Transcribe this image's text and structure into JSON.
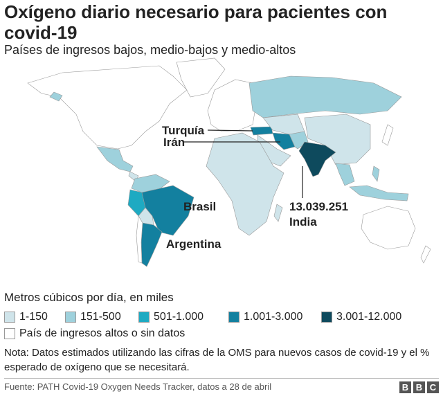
{
  "title": "Oxígeno diario necesario para pacientes con covid-19",
  "subtitle": "Países de ingresos bajos, medio-bajos y medio-altos",
  "map": {
    "labels": {
      "turkey": "Turquía",
      "iran": "Irán",
      "brazil": "Brasil",
      "argentina": "Argentina",
      "india_value": "13.039.251",
      "india": "India"
    }
  },
  "legend": {
    "title": "Metros cúbicos por día, en miles",
    "items": [
      {
        "label": "1-150",
        "color": "#cfe4ea"
      },
      {
        "label": "151-500",
        "color": "#9ed1dc"
      },
      {
        "label": "501-1.000",
        "color": "#1eaac2"
      },
      {
        "label": "1.001-3.000",
        "color": "#13809f"
      },
      {
        "label": "3.001-12.000",
        "color": "#0e4a5d"
      }
    ],
    "no_data": {
      "label": "País de ingresos altos o sin datos",
      "color": "#ffffff"
    }
  },
  "note": "Nota: Datos estimados utilizando las cifras de la OMS para nuevos casos de covid-19 y el % esperado de oxígeno que se necesitará.",
  "source": "Fuente: PATH Covid-19 Oxygen Needs Tracker, datos a 28 de abril",
  "logo": [
    "B",
    "B",
    "C"
  ]
}
